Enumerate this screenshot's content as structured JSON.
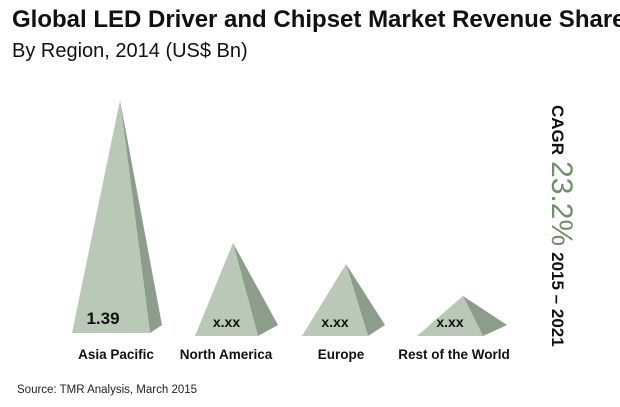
{
  "header": {
    "title": "Global LED Driver and Chipset Market Revenue Share",
    "subtitle": "By Region, 2014 (US$ Bn)"
  },
  "cagr": {
    "prefix": "CAGR",
    "value": "23.2%",
    "period": "2015 – 2021"
  },
  "source": "Source: TMR Analysis, March 2015",
  "colors": {
    "pyramid_light": "#b9c8b7",
    "pyramid_dark": "#8d9d8c",
    "cagr_value": "#6f8f6a"
  },
  "chart_data": {
    "type": "bar",
    "categories": [
      "Asia Pacific",
      "North America",
      "Europe",
      "Rest of the World"
    ],
    "values": [
      1.39,
      null,
      null,
      null
    ],
    "value_labels": [
      "1.39",
      "x.xx",
      "x.xx",
      "x.xx"
    ],
    "title": "Global LED Driver and Chipset Market Revenue Share",
    "subtitle": "By Region, 2014 (US$ Bn)",
    "xlabel": "",
    "ylabel": "",
    "grid": false,
    "legend": "none"
  }
}
